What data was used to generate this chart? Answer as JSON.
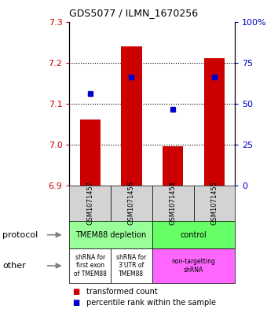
{
  "title": "GDS5077 / ILMN_1670256",
  "samples": [
    "GSM1071457",
    "GSM1071456",
    "GSM1071454",
    "GSM1071455"
  ],
  "bar_bottoms": [
    6.9,
    6.9,
    6.9,
    6.9
  ],
  "bar_tops": [
    7.06,
    7.24,
    6.995,
    7.21
  ],
  "blue_y": [
    7.125,
    7.165,
    7.085,
    7.165
  ],
  "ylim": [
    6.9,
    7.3
  ],
  "yticks_left": [
    6.9,
    7.0,
    7.1,
    7.2,
    7.3
  ],
  "yticks_right": [
    0,
    25,
    50,
    75,
    100
  ],
  "ytick_labels_right": [
    "0",
    "25",
    "50",
    "75",
    "100%"
  ],
  "bar_color": "#cc0000",
  "blue_color": "#0000cc",
  "legend_red_label": "transformed count",
  "legend_blue_label": "percentile rank within the sample",
  "protocol_label": "protocol",
  "other_label": "other"
}
